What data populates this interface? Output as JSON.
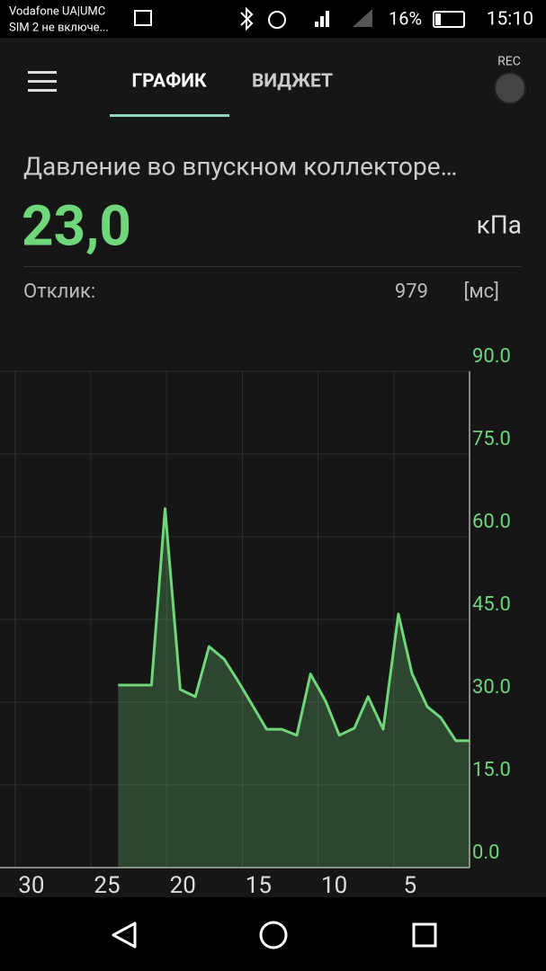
{
  "status_bar": {
    "carrier": "Vodafone UA|UMC",
    "sim2": "SIM 2 не включе...",
    "battery": "16%",
    "time": "15:10"
  },
  "tabs": [
    "ГРАФИК",
    "ВИДЖЕТ"
  ],
  "rec_label": "REC",
  "sensor": {
    "name": "Давление во впускном коллекторе…",
    "value": "23,0",
    "unit": "кПа"
  },
  "response": {
    "label": "Отклик:",
    "value": "979",
    "unit": "[мс]"
  },
  "chart_data": {
    "type": "area",
    "x": [
      23.2,
      21.0,
      20.1,
      19.1,
      18.1,
      17.2,
      16.2,
      15.3,
      14.3,
      13.4,
      12.4,
      11.4,
      10.5,
      9.5,
      8.6,
      7.6,
      6.7,
      5.7,
      4.7,
      3.8,
      2.8,
      1.9,
      0.9,
      0
    ],
    "values": [
      33.1,
      33.1,
      65.1,
      32.3,
      31.0,
      40.1,
      37.8,
      33.9,
      29.3,
      25.1,
      25.1,
      24.0,
      35.1,
      30.2,
      24.0,
      25.3,
      31.0,
      25.1,
      46.0,
      35.2,
      29.2,
      27.2,
      23.0,
      23.0
    ],
    "xlim": [
      31,
      0
    ],
    "xticks": [
      30,
      25,
      20,
      15,
      10,
      5
    ],
    "ylim": [
      0,
      90
    ],
    "yticks": [
      {
        "value": 0,
        "label": "0.0"
      },
      {
        "value": 15,
        "label": "15.0"
      },
      {
        "value": 30,
        "label": "30.0"
      },
      {
        "value": 45,
        "label": "45.0"
      },
      {
        "value": 60,
        "label": "60.0"
      },
      {
        "value": 75,
        "label": "75.0"
      },
      {
        "value": 90,
        "label": "90.0"
      }
    ],
    "color": "#6fd67a",
    "grid": true
  }
}
